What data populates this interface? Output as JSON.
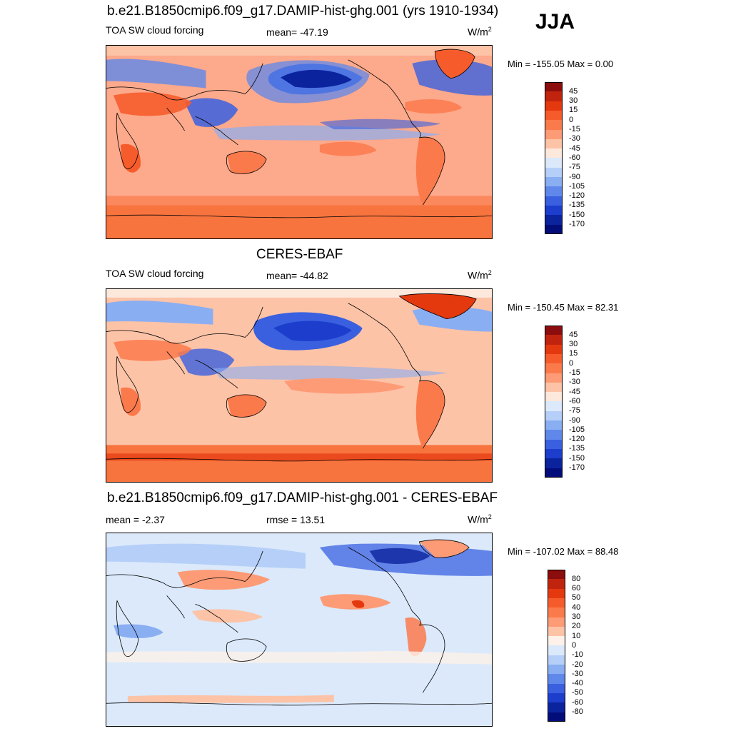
{
  "season": "JJA",
  "unit_base": "W/m",
  "unit_exp": "2",
  "panels": [
    {
      "title": "b.e21.B1850cmip6.f09_g17.DAMIP-hist-ghg.001 (yrs 1910-1934)",
      "left_label": "TOA SW cloud forcing",
      "center_label": "mean= -47.19",
      "minmax": "Min = -155.05 Max =   0.00",
      "colorbar": {
        "labels": [
          "45",
          "30",
          "15",
          "0",
          "-15",
          "-30",
          "-45",
          "-60",
          "-75",
          "-90",
          "-105",
          "-120",
          "-135",
          "-150",
          "-170"
        ],
        "colors": [
          "#8b0d0d",
          "#c1240e",
          "#e4390f",
          "#f65c2b",
          "#fb7a4c",
          "#fd9b76",
          "#fdc3a7",
          "#fde8dc",
          "#dbe9fb",
          "#b5cff8",
          "#8aaef2",
          "#5f88ea",
          "#3a60e0",
          "#1d3ecc",
          "#0c239e",
          "#030d7a"
        ]
      },
      "bg": "#fda98b"
    },
    {
      "title": "CERES-EBAF",
      "left_label": "TOA SW cloud forcing",
      "center_label": "mean= -44.82",
      "minmax": "Min = -150.45 Max =  82.31",
      "colorbar": {
        "labels": [
          "45",
          "30",
          "15",
          "0",
          "-15",
          "-30",
          "-45",
          "-60",
          "-75",
          "-90",
          "-105",
          "-120",
          "-135",
          "-150",
          "-170"
        ],
        "colors": [
          "#8b0d0d",
          "#c1240e",
          "#e4390f",
          "#f65c2b",
          "#fb7a4c",
          "#fd9b76",
          "#fdc3a7",
          "#fde8dc",
          "#dbe9fb",
          "#b5cff8",
          "#8aaef2",
          "#5f88ea",
          "#3a60e0",
          "#1d3ecc",
          "#0c239e",
          "#030d7a"
        ]
      },
      "bg": "#fdc3a7"
    },
    {
      "title": "b.e21.B1850cmip6.f09_g17.DAMIP-hist-ghg.001 - CERES-EBAF",
      "left_label": "mean =  -2.37",
      "center_label": "rmse =  13.51",
      "minmax": "Min = -107.02 Max =  88.48",
      "colorbar": {
        "labels": [
          "80",
          "60",
          "50",
          "40",
          "30",
          "20",
          "10",
          "0",
          "-10",
          "-20",
          "-30",
          "-40",
          "-50",
          "-60",
          "-80"
        ],
        "colors": [
          "#8b0d0d",
          "#c1240e",
          "#e4390f",
          "#f65c2b",
          "#fb7a4c",
          "#fd9b76",
          "#fdc3a7",
          "#fdf1ea",
          "#dbe9fb",
          "#b5cff8",
          "#8aaef2",
          "#5f88ea",
          "#3a60e0",
          "#1d3ecc",
          "#0c239e",
          "#030d7a"
        ]
      },
      "bg": "#dbe9fb"
    }
  ]
}
